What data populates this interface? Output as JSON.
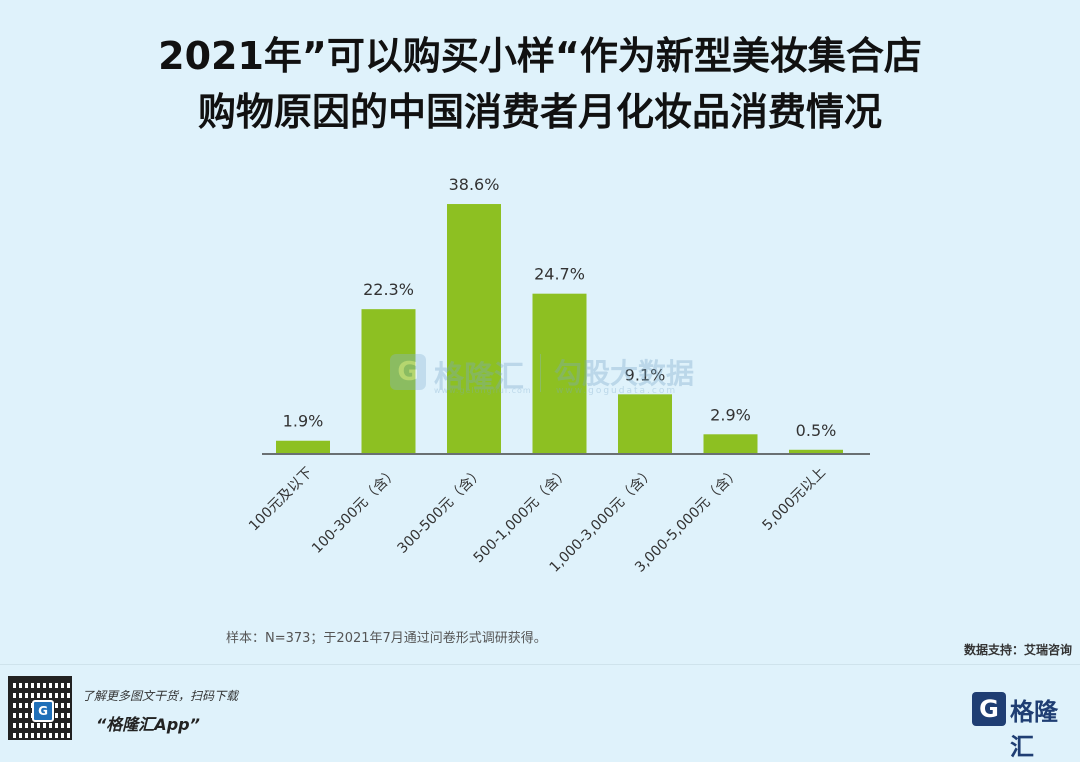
{
  "title_line1": "2021年”可以购买小样“作为新型美妆集合店",
  "title_line2": "购物原因的中国消费者月化妆品消费情况",
  "chart_data": {
    "type": "bar",
    "categories": [
      "100元及以下",
      "100-300元（含）",
      "300-500元（含）",
      "500-1,000元（含）",
      "1,000-3,000元（含）",
      "3,000-5,000元（含）",
      "5,000元以上"
    ],
    "values": [
      1.9,
      22.3,
      38.6,
      24.7,
      9.1,
      2.9,
      0.5
    ],
    "value_labels": [
      "1.9%",
      "22.3%",
      "38.6%",
      "24.7%",
      "9.1%",
      "2.9%",
      "0.5%"
    ],
    "ylim": [
      0,
      40
    ],
    "grid": false,
    "bar_color": "#8dc022"
  },
  "watermark": {
    "logo": "G",
    "name": "格隆汇",
    "url": "www.gelonghui.com",
    "name2": "勾股大数据",
    "url2": "www.gogudata.com"
  },
  "note": "样本：N=373；于2021年7月通过问卷形式调研获得。",
  "source": "数据支持：艾瑞咨询",
  "footer": {
    "promo_line1": "了解更多图文干货，扫码下载",
    "promo_line2": "“格隆汇App”",
    "qr_logo": "G",
    "brand_logo": "G",
    "brand_name": "格隆汇"
  }
}
